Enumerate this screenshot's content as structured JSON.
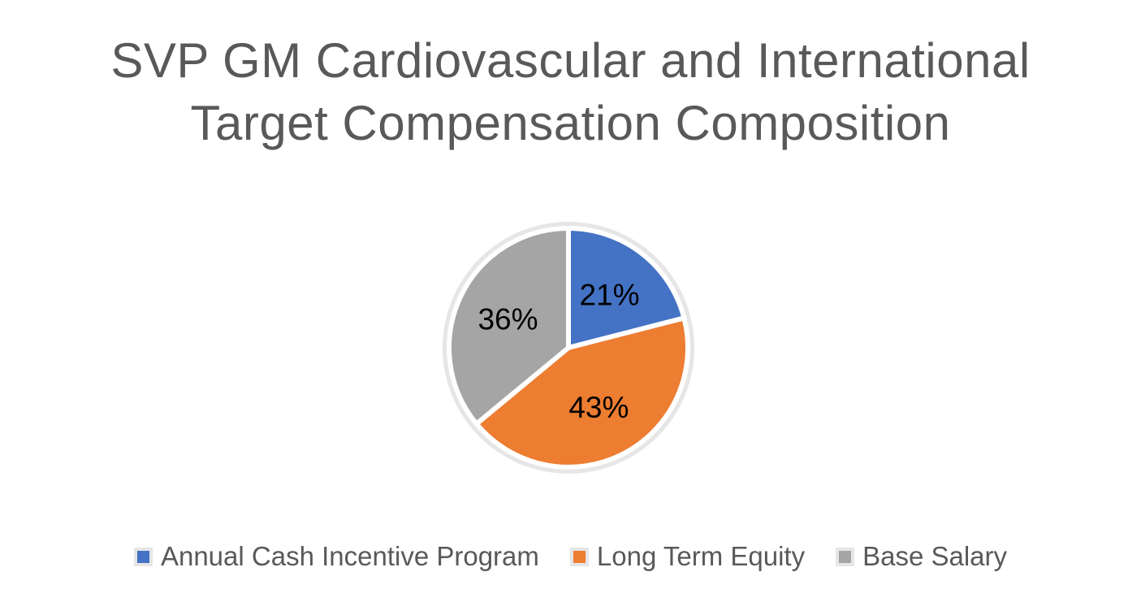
{
  "title": {
    "line1": "SVP GM Cardiovascular and International",
    "line2": "Target Compensation Composition",
    "color": "#595959"
  },
  "chart_data": {
    "type": "pie",
    "title": "SVP GM Cardiovascular and International Target Compensation Composition",
    "slices": [
      {
        "label": "Annual Cash Incentive Program",
        "value": 21,
        "display": "21%",
        "color": "#4472C4"
      },
      {
        "label": "Long Term Equity",
        "value": 43,
        "display": "43%",
        "color": "#ED7D31"
      },
      {
        "label": "Base Salary",
        "value": 36,
        "display": "36%",
        "color": "#A5A5A5"
      }
    ],
    "total": 100,
    "start_angle_deg": 0,
    "direction": "clockwise",
    "legend_position": "bottom",
    "slice_separator_color": "#FFFFFF",
    "outer_ring_color": "#E6E6E6",
    "data_label_color": "#000000",
    "data_label_radius_ratio": 0.56
  },
  "legend": {
    "marker_pad_color": "#E6E6E6",
    "text_color": "#595959"
  }
}
